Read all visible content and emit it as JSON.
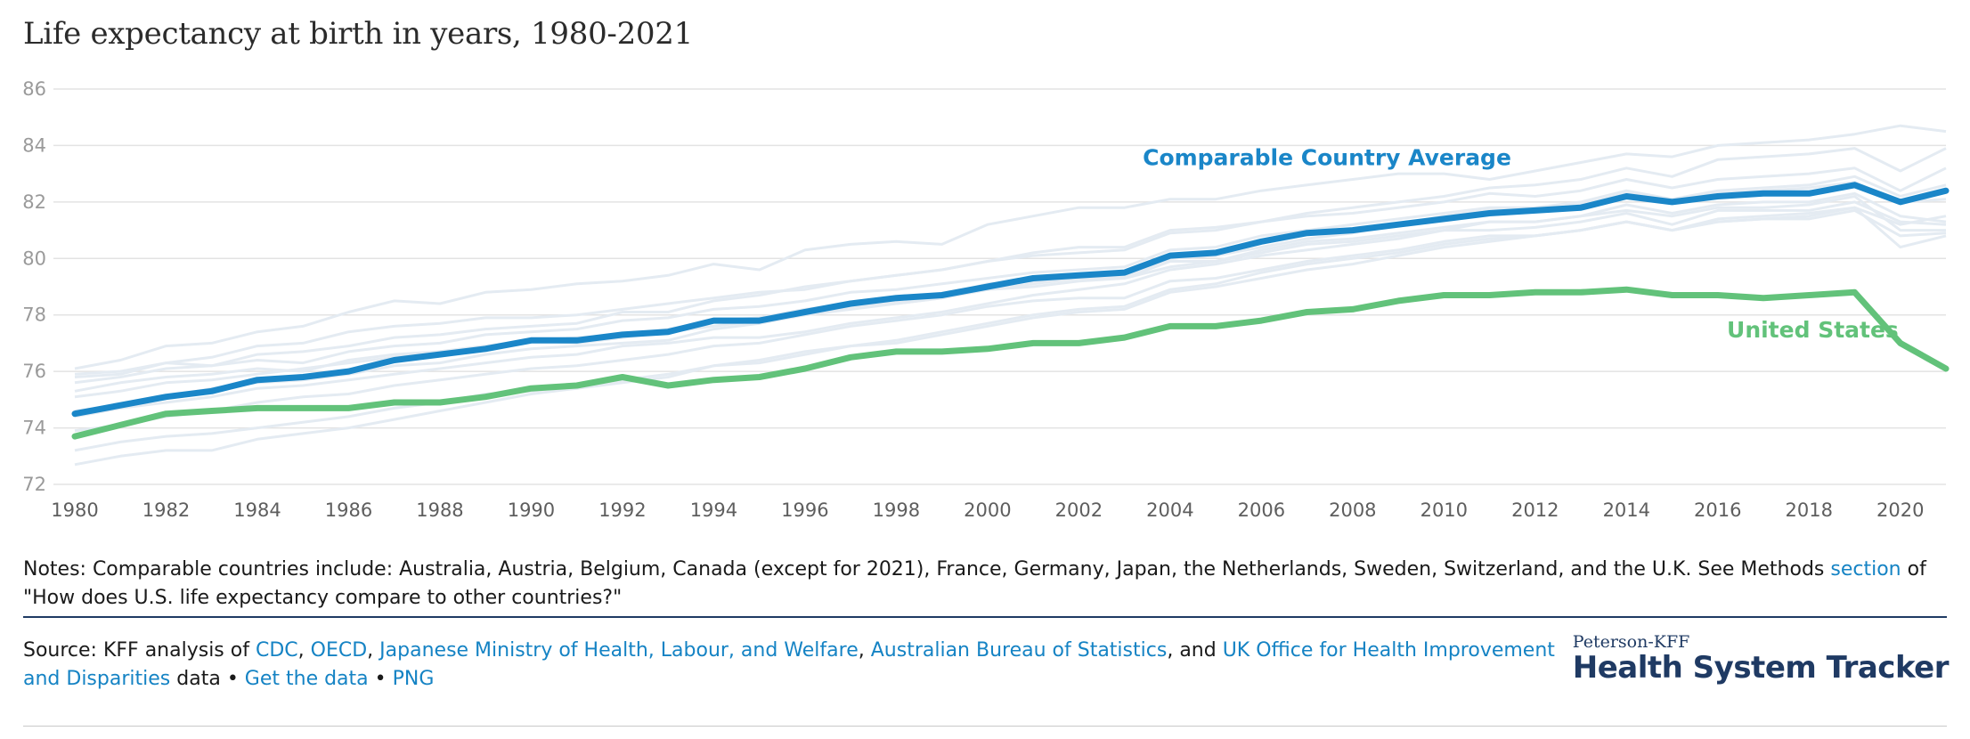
{
  "page": {
    "title": "Life expectancy at birth in years, 1980-2021"
  },
  "colors": {
    "comparable": "#1a86c8",
    "us": "#62c27a",
    "background_lines": "#e4ebf2",
    "grid": "#e3e3e3"
  },
  "chart_data": {
    "type": "line",
    "title": "Life expectancy at birth in years, 1980-2021",
    "xlabel": "",
    "ylabel": "",
    "ylim": [
      72,
      86
    ],
    "xlim": [
      1980,
      2021
    ],
    "yticks": [
      72,
      74,
      76,
      78,
      80,
      82,
      84,
      86
    ],
    "xticks": [
      1980,
      1982,
      1984,
      1986,
      1988,
      1990,
      1992,
      1994,
      1996,
      1998,
      2000,
      2002,
      2004,
      2006,
      2008,
      2010,
      2012,
      2014,
      2016,
      2018,
      2020
    ],
    "grid": true,
    "x": [
      1980,
      1981,
      1982,
      1983,
      1984,
      1985,
      1986,
      1987,
      1988,
      1989,
      1990,
      1991,
      1992,
      1993,
      1994,
      1995,
      1996,
      1997,
      1998,
      1999,
      2000,
      2001,
      2002,
      2003,
      2004,
      2005,
      2006,
      2007,
      2008,
      2009,
      2010,
      2011,
      2012,
      2013,
      2014,
      2015,
      2016,
      2017,
      2018,
      2019,
      2020,
      2021
    ],
    "series": [
      {
        "name": "Comparable Country Average",
        "values": [
          74.5,
          74.8,
          75.1,
          75.3,
          75.7,
          75.8,
          76.0,
          76.4,
          76.6,
          76.8,
          77.1,
          77.1,
          77.3,
          77.4,
          77.8,
          77.8,
          78.1,
          78.4,
          78.6,
          78.7,
          79.0,
          79.3,
          79.4,
          79.5,
          80.1,
          80.2,
          80.6,
          80.9,
          81.0,
          81.2,
          81.4,
          81.6,
          81.7,
          81.8,
          82.2,
          82.0,
          82.2,
          82.3,
          82.3,
          82.6,
          82.0,
          82.4
        ]
      },
      {
        "name": "United States",
        "values": [
          73.7,
          74.1,
          74.5,
          74.6,
          74.7,
          74.7,
          74.7,
          74.9,
          74.9,
          75.1,
          75.4,
          75.5,
          75.8,
          75.5,
          75.7,
          75.8,
          76.1,
          76.5,
          76.7,
          76.7,
          76.8,
          77.0,
          77.0,
          77.2,
          77.6,
          77.6,
          77.8,
          78.1,
          78.2,
          78.5,
          78.7,
          78.7,
          78.8,
          78.8,
          78.9,
          78.7,
          78.7,
          78.6,
          78.7,
          78.8,
          77.0,
          76.1
        ]
      }
    ],
    "background_series": [
      [
        76.1,
        76.4,
        76.9,
        77.0,
        77.4,
        77.6,
        78.1,
        78.5,
        78.4,
        78.8,
        78.9,
        79.1,
        79.2,
        79.4,
        79.8,
        79.6,
        80.3,
        80.5,
        80.6,
        80.5,
        81.2,
        81.5,
        81.8,
        81.8,
        82.1,
        82.1,
        82.4,
        82.6,
        82.8,
        83.0,
        83.0,
        82.8,
        83.1,
        83.4,
        83.7,
        83.6,
        84.0,
        84.1,
        84.2,
        84.4,
        84.7,
        84.5
      ],
      [
        75.8,
        75.9,
        76.3,
        76.5,
        76.9,
        77.0,
        77.4,
        77.6,
        77.7,
        77.9,
        77.9,
        78.0,
        78.2,
        78.4,
        78.6,
        78.8,
        78.9,
        79.2,
        79.4,
        79.6,
        79.9,
        80.1,
        80.2,
        80.3,
        80.9,
        81.0,
        81.3,
        81.6,
        81.8,
        82.0,
        82.2,
        82.5,
        82.6,
        82.8,
        83.2,
        82.9,
        83.5,
        83.6,
        83.7,
        83.9,
        83.1,
        83.9
      ],
      [
        75.9,
        76.0,
        76.3,
        76.2,
        76.6,
        76.7,
        76.9,
        77.2,
        77.3,
        77.5,
        77.6,
        77.7,
        78.1,
        78.1,
        78.5,
        78.7,
        79.0,
        79.2,
        79.4,
        79.6,
        79.9,
        80.2,
        80.4,
        80.4,
        81.0,
        81.1,
        81.3,
        81.5,
        81.6,
        81.8,
        82.0,
        82.3,
        82.2,
        82.4,
        82.8,
        82.5,
        82.8,
        82.9,
        83.0,
        83.2,
        82.4,
        83.2
      ],
      [
        75.6,
        75.8,
        76.1,
        76.2,
        76.4,
        76.3,
        76.7,
        76.9,
        77.0,
        77.3,
        77.4,
        77.5,
        77.8,
        77.9,
        78.2,
        78.3,
        78.5,
        78.8,
        78.9,
        79.1,
        79.3,
        79.5,
        79.6,
        79.7,
        80.3,
        80.4,
        80.8,
        81.0,
        81.2,
        81.4,
        81.6,
        81.8,
        81.8,
        82.0,
        82.4,
        82.1,
        82.4,
        82.5,
        82.6,
        82.9,
        82.2,
        82.6
      ],
      [
        75.3,
        75.6,
        75.8,
        75.9,
        76.1,
        76.0,
        76.4,
        76.6,
        76.7,
        76.9,
        77.1,
        77.2,
        77.3,
        77.5,
        77.8,
        77.9,
        78.2,
        78.4,
        78.5,
        78.7,
        79.1,
        79.2,
        79.3,
        79.4,
        80.0,
        80.1,
        80.4,
        80.7,
        80.9,
        81.2,
        81.5,
        81.7,
        81.7,
        81.9,
        82.3,
        82.1,
        82.3,
        82.4,
        82.5,
        82.7,
        82.0,
        82.1
      ],
      [
        75.1,
        75.3,
        75.6,
        75.7,
        75.9,
        76.1,
        76.3,
        76.5,
        76.7,
        76.9,
        77.1,
        77.0,
        77.2,
        77.4,
        77.6,
        77.8,
        78.0,
        78.3,
        78.4,
        78.6,
        78.9,
        79.1,
        79.3,
        79.3,
        79.9,
        79.9,
        80.3,
        80.6,
        80.7,
        80.9,
        81.1,
        81.3,
        81.3,
        81.5,
        81.9,
        81.6,
        81.9,
        82.0,
        82.0,
        82.3,
        81.5,
        81.3
      ],
      [
        74.6,
        74.8,
        75.1,
        75.4,
        75.6,
        75.7,
        75.9,
        76.2,
        76.3,
        76.6,
        76.8,
        76.9,
        77.0,
        77.1,
        77.5,
        77.7,
        78.0,
        78.2,
        78.4,
        78.6,
        78.9,
        79.0,
        79.2,
        79.3,
        79.7,
        79.9,
        80.2,
        80.5,
        80.6,
        80.8,
        81.0,
        81.3,
        81.3,
        81.5,
        81.7,
        81.5,
        81.8,
        81.8,
        81.9,
        82.2,
        81.0,
        81.0
      ],
      [
        74.4,
        74.7,
        74.9,
        75.1,
        75.4,
        75.5,
        75.7,
        75.9,
        76.1,
        76.3,
        76.5,
        76.6,
        76.9,
        77.0,
        77.2,
        77.2,
        77.4,
        77.7,
        77.9,
        78.1,
        78.4,
        78.7,
        78.9,
        79.1,
        79.6,
        79.8,
        80.1,
        80.3,
        80.5,
        80.7,
        81.0,
        81.0,
        81.1,
        81.3,
        81.6,
        81.2,
        81.7,
        81.7,
        81.7,
        82.0,
        81.3,
        81.2
      ],
      [
        73.9,
        74.1,
        74.4,
        74.6,
        74.9,
        75.1,
        75.2,
        75.5,
        75.7,
        75.9,
        76.1,
        76.2,
        76.4,
        76.6,
        76.9,
        77.0,
        77.3,
        77.6,
        77.8,
        78.0,
        78.3,
        78.5,
        78.6,
        78.6,
        79.2,
        79.3,
        79.6,
        79.9,
        80.1,
        80.3,
        80.6,
        80.8,
        80.8,
        81.0,
        81.3,
        81.0,
        81.3,
        81.4,
        81.4,
        81.7,
        80.8,
        80.9
      ],
      [
        73.2,
        73.5,
        73.7,
        73.8,
        74.0,
        74.2,
        74.4,
        74.7,
        74.9,
        75.2,
        75.3,
        75.5,
        75.7,
        75.9,
        76.2,
        76.3,
        76.6,
        76.9,
        77.1,
        77.4,
        77.7,
        78.0,
        78.2,
        78.3,
        78.9,
        79.1,
        79.5,
        79.8,
        80.0,
        80.2,
        80.5,
        80.7,
        80.8,
        81.0,
        81.3,
        81.0,
        81.3,
        81.4,
        81.5,
        81.8,
        81.2,
        81.5
      ],
      [
        72.7,
        73.0,
        73.2,
        73.2,
        73.6,
        73.8,
        74.0,
        74.3,
        74.6,
        74.9,
        75.2,
        75.4,
        75.6,
        75.8,
        76.2,
        76.4,
        76.7,
        76.9,
        77.0,
        77.3,
        77.6,
        77.9,
        78.1,
        78.2,
        78.8,
        79.0,
        79.3,
        79.6,
        79.8,
        80.1,
        80.4,
        80.6,
        80.8,
        81.0,
        81.3,
        81.0,
        81.4,
        81.5,
        81.6,
        81.8,
        80.4,
        80.8
      ]
    ],
    "annotations": [
      {
        "text": "Comparable Country Average",
        "x": 2003.4,
        "y": 83.3
      },
      {
        "text": "United States",
        "x": 2016.2,
        "y": 77.2
      }
    ]
  },
  "notes": {
    "prefix": "Notes: Comparable countries include: Australia, Austria, Belgium, Canada (except for 2021), France, Germany, Japan, the Netherlands, Sweden, Switzerland, and the U.K. See Methods",
    "link": "section",
    "suffix": "of \"How does U.S. life expectancy compare to other countries?\""
  },
  "source": {
    "prefix": "Source: KFF analysis of",
    "links": [
      "CDC",
      "OECD",
      "Japanese Ministry of Health, Labour, and Welfare",
      "Australian Bureau of Statistics",
      "UK Office for Health Improvement and Disparities",
      "Get the data",
      "PNG"
    ],
    "and_text": "and",
    "data_text": "data",
    "bullet": "•"
  },
  "brand": {
    "small": "Peterson-KFF",
    "big": "Health System Tracker"
  }
}
